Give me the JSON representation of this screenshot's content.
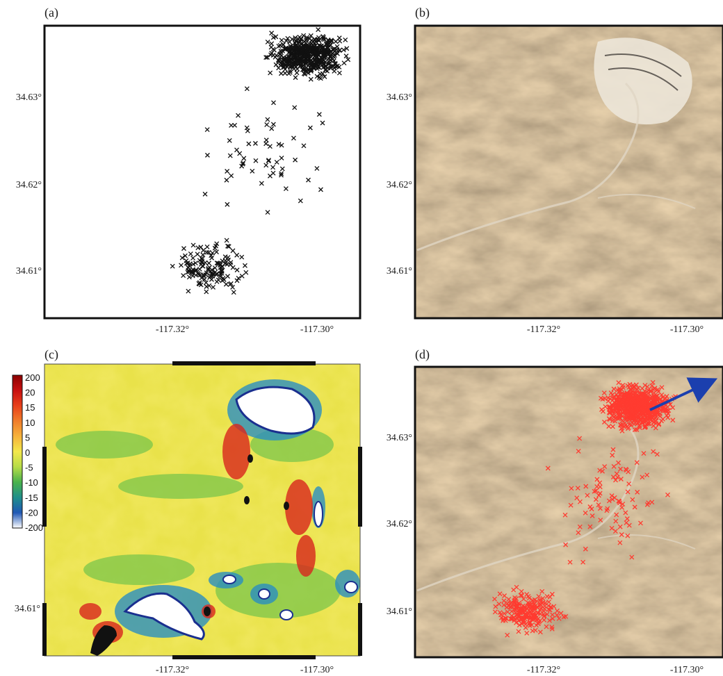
{
  "panels": {
    "a": {
      "label": "(a)"
    },
    "b": {
      "label": "(b)"
    },
    "c": {
      "label": "(c)"
    },
    "d": {
      "label": "(d)"
    }
  },
  "axes": {
    "lat_ticks": [
      "34.63°",
      "34.62°",
      "34.61°"
    ],
    "lon_ticks": [
      "-117.32°",
      "-117.30°"
    ]
  },
  "colorbar": {
    "labels": [
      "200",
      "20",
      "15",
      "10",
      "5",
      "0",
      "-5",
      "-10",
      "-15",
      "-20",
      "-200"
    ],
    "colors": [
      "#8b0000",
      "#c81010",
      "#e8401a",
      "#f07d2a",
      "#f6b23a",
      "#f3e84a",
      "#b6dc48",
      "#49b24c",
      "#1f8f8a",
      "#1f57b5",
      "#ffffff"
    ]
  },
  "colors": {
    "scatter_marker": "#111111",
    "event_marker": "#ff3b30",
    "arrow": "#1b3fae",
    "terrain_base": "#b89c74"
  },
  "icons": {
    "scatter": "x-marker-icon",
    "arrow": "direction-arrow-icon"
  }
}
